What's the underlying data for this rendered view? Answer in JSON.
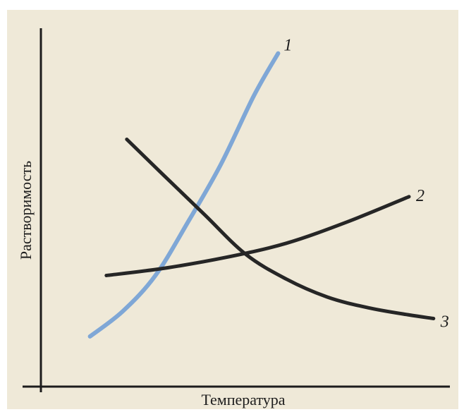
{
  "chart_data": {
    "type": "line",
    "xlabel": "Температура",
    "ylabel": "Растворимость",
    "xlim": [
      0,
      100
    ],
    "ylim": [
      0,
      100
    ],
    "grid": false,
    "legend": "none",
    "series": [
      {
        "name": "1",
        "color": "#7fa7d6",
        "x": [
          12,
          20,
          28,
          36,
          44,
          52,
          58
        ],
        "y": [
          14,
          21,
          31,
          46,
          62,
          81,
          93
        ]
      },
      {
        "name": "2",
        "color": "#262626",
        "x": [
          16,
          30,
          45,
          60,
          75,
          90
        ],
        "y": [
          31,
          33,
          36,
          40,
          46,
          53
        ]
      },
      {
        "name": "3",
        "color": "#262626",
        "x": [
          21,
          30,
          40,
          50,
          60,
          70,
          80,
          90,
          96
        ],
        "y": [
          69,
          59,
          48,
          37,
          30,
          25,
          22,
          20,
          19
        ]
      }
    ]
  }
}
